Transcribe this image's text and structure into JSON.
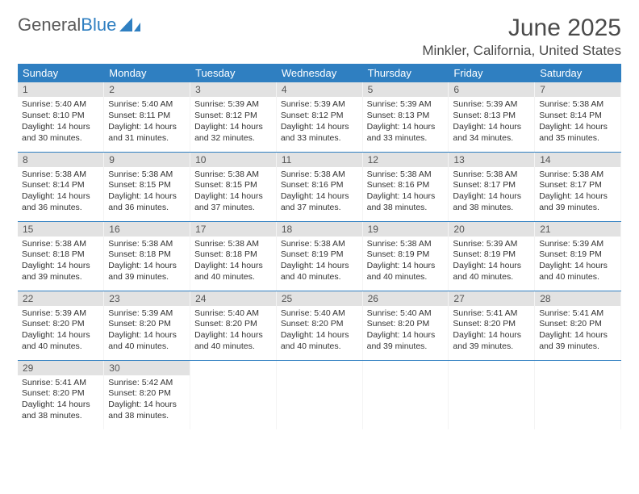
{
  "logo": {
    "text1": "General",
    "text2": "Blue"
  },
  "title": "June 2025",
  "location": "Minkler, California, United States",
  "colors": {
    "header_bg": "#2f7fc1",
    "header_text": "#ffffff",
    "daynum_bg": "#e2e2e2",
    "border": "#2f7fc1",
    "logo_gray": "#5a5a5a",
    "logo_blue": "#2f7fc1"
  },
  "weekdays": [
    "Sunday",
    "Monday",
    "Tuesday",
    "Wednesday",
    "Thursday",
    "Friday",
    "Saturday"
  ],
  "weeks": [
    [
      {
        "n": "1",
        "sr": "5:40 AM",
        "ss": "8:10 PM",
        "dl": "14 hours and 30 minutes."
      },
      {
        "n": "2",
        "sr": "5:40 AM",
        "ss": "8:11 PM",
        "dl": "14 hours and 31 minutes."
      },
      {
        "n": "3",
        "sr": "5:39 AM",
        "ss": "8:12 PM",
        "dl": "14 hours and 32 minutes."
      },
      {
        "n": "4",
        "sr": "5:39 AM",
        "ss": "8:12 PM",
        "dl": "14 hours and 33 minutes."
      },
      {
        "n": "5",
        "sr": "5:39 AM",
        "ss": "8:13 PM",
        "dl": "14 hours and 33 minutes."
      },
      {
        "n": "6",
        "sr": "5:39 AM",
        "ss": "8:13 PM",
        "dl": "14 hours and 34 minutes."
      },
      {
        "n": "7",
        "sr": "5:38 AM",
        "ss": "8:14 PM",
        "dl": "14 hours and 35 minutes."
      }
    ],
    [
      {
        "n": "8",
        "sr": "5:38 AM",
        "ss": "8:14 PM",
        "dl": "14 hours and 36 minutes."
      },
      {
        "n": "9",
        "sr": "5:38 AM",
        "ss": "8:15 PM",
        "dl": "14 hours and 36 minutes."
      },
      {
        "n": "10",
        "sr": "5:38 AM",
        "ss": "8:15 PM",
        "dl": "14 hours and 37 minutes."
      },
      {
        "n": "11",
        "sr": "5:38 AM",
        "ss": "8:16 PM",
        "dl": "14 hours and 37 minutes."
      },
      {
        "n": "12",
        "sr": "5:38 AM",
        "ss": "8:16 PM",
        "dl": "14 hours and 38 minutes."
      },
      {
        "n": "13",
        "sr": "5:38 AM",
        "ss": "8:17 PM",
        "dl": "14 hours and 38 minutes."
      },
      {
        "n": "14",
        "sr": "5:38 AM",
        "ss": "8:17 PM",
        "dl": "14 hours and 39 minutes."
      }
    ],
    [
      {
        "n": "15",
        "sr": "5:38 AM",
        "ss": "8:18 PM",
        "dl": "14 hours and 39 minutes."
      },
      {
        "n": "16",
        "sr": "5:38 AM",
        "ss": "8:18 PM",
        "dl": "14 hours and 39 minutes."
      },
      {
        "n": "17",
        "sr": "5:38 AM",
        "ss": "8:18 PM",
        "dl": "14 hours and 40 minutes."
      },
      {
        "n": "18",
        "sr": "5:38 AM",
        "ss": "8:19 PM",
        "dl": "14 hours and 40 minutes."
      },
      {
        "n": "19",
        "sr": "5:38 AM",
        "ss": "8:19 PM",
        "dl": "14 hours and 40 minutes."
      },
      {
        "n": "20",
        "sr": "5:39 AM",
        "ss": "8:19 PM",
        "dl": "14 hours and 40 minutes."
      },
      {
        "n": "21",
        "sr": "5:39 AM",
        "ss": "8:19 PM",
        "dl": "14 hours and 40 minutes."
      }
    ],
    [
      {
        "n": "22",
        "sr": "5:39 AM",
        "ss": "8:20 PM",
        "dl": "14 hours and 40 minutes."
      },
      {
        "n": "23",
        "sr": "5:39 AM",
        "ss": "8:20 PM",
        "dl": "14 hours and 40 minutes."
      },
      {
        "n": "24",
        "sr": "5:40 AM",
        "ss": "8:20 PM",
        "dl": "14 hours and 40 minutes."
      },
      {
        "n": "25",
        "sr": "5:40 AM",
        "ss": "8:20 PM",
        "dl": "14 hours and 40 minutes."
      },
      {
        "n": "26",
        "sr": "5:40 AM",
        "ss": "8:20 PM",
        "dl": "14 hours and 39 minutes."
      },
      {
        "n": "27",
        "sr": "5:41 AM",
        "ss": "8:20 PM",
        "dl": "14 hours and 39 minutes."
      },
      {
        "n": "28",
        "sr": "5:41 AM",
        "ss": "8:20 PM",
        "dl": "14 hours and 39 minutes."
      }
    ],
    [
      {
        "n": "29",
        "sr": "5:41 AM",
        "ss": "8:20 PM",
        "dl": "14 hours and 38 minutes."
      },
      {
        "n": "30",
        "sr": "5:42 AM",
        "ss": "8:20 PM",
        "dl": "14 hours and 38 minutes."
      },
      null,
      null,
      null,
      null,
      null
    ]
  ],
  "labels": {
    "sunrise": "Sunrise:",
    "sunset": "Sunset:",
    "daylight": "Daylight:"
  }
}
